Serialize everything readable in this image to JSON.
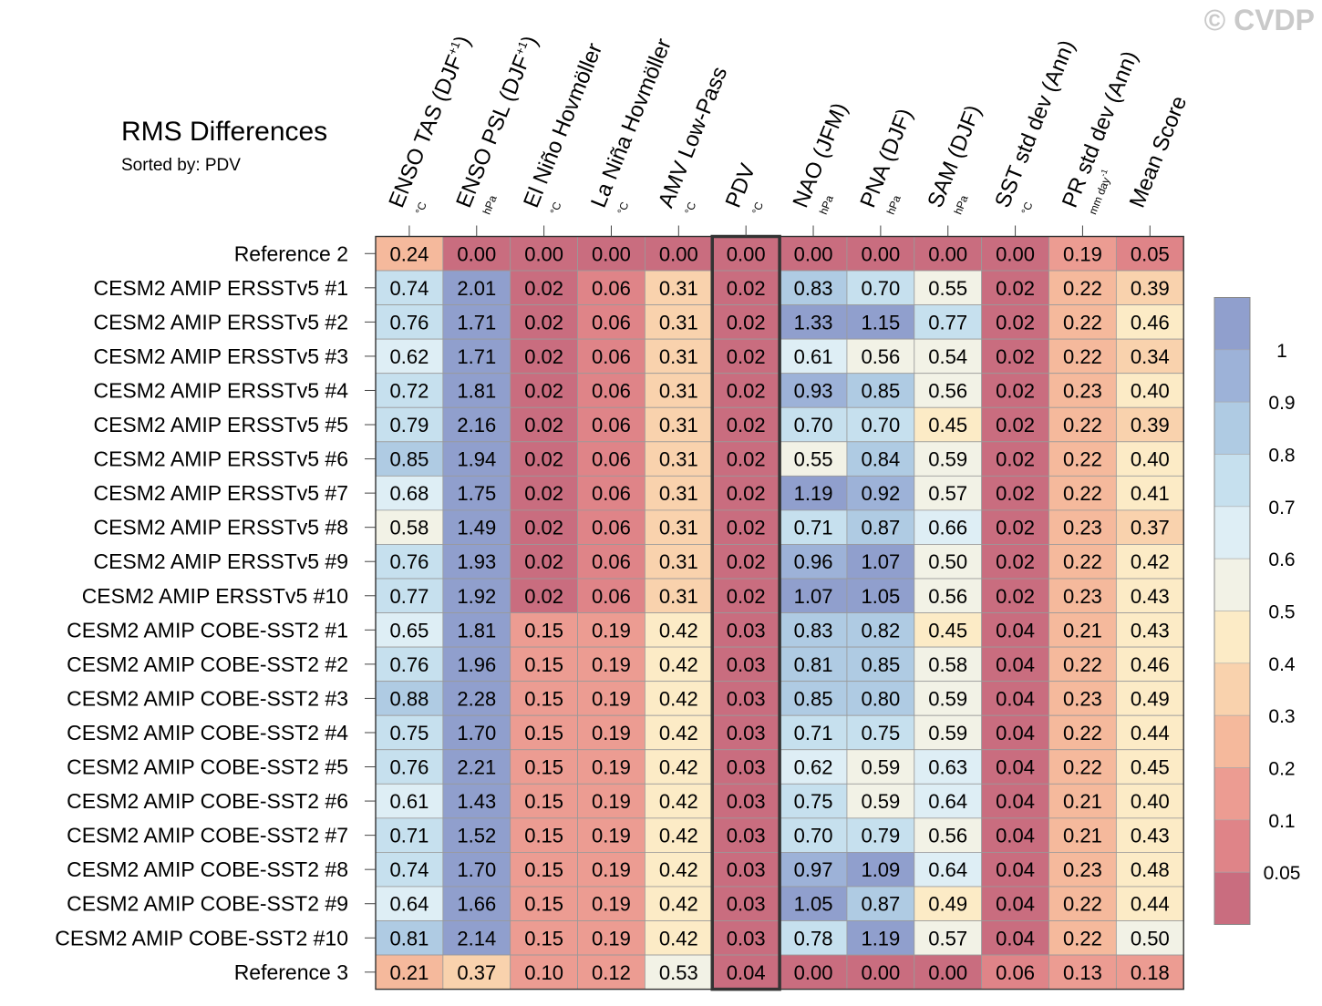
{
  "title": "RMS Differences",
  "subtitle": "Sorted by: PDV",
  "watermark": "© CVDP",
  "chart_data": {
    "type": "heatmap",
    "title": "RMS Differences",
    "sorted_by": "PDV",
    "highlight_column": 5,
    "columns": [
      {
        "label": "ENSO TAS (DJF",
        "sup": "+1",
        "suffix": ")",
        "unit": "°C"
      },
      {
        "label": "ENSO PSL (DJF",
        "sup": "+1",
        "suffix": ")",
        "unit": "hPa"
      },
      {
        "label": "El Niño Hovmöller",
        "sup": "",
        "suffix": "",
        "unit": "°C"
      },
      {
        "label": "La Niña Hovmöller",
        "sup": "",
        "suffix": "",
        "unit": "°C"
      },
      {
        "label": "AMV Low-Pass",
        "sup": "",
        "suffix": "",
        "unit": "°C"
      },
      {
        "label": "PDV",
        "sup": "",
        "suffix": "",
        "unit": "°C"
      },
      {
        "label": "NAO (JFM)",
        "sup": "",
        "suffix": "",
        "unit": "hPa"
      },
      {
        "label": "PNA (DJF)",
        "sup": "",
        "suffix": "",
        "unit": "hPa"
      },
      {
        "label": "SAM (DJF)",
        "sup": "",
        "suffix": "",
        "unit": "hPa"
      },
      {
        "label": "SST std dev (Ann)",
        "sup": "",
        "suffix": "",
        "unit": "°C"
      },
      {
        "label": "PR std dev (Ann)",
        "sup": "",
        "suffix": "",
        "unit": "mm day",
        "unit_sup": "-1"
      },
      {
        "label": "Mean Score",
        "sup": "",
        "suffix": "",
        "unit": ""
      }
    ],
    "rows": [
      {
        "name": "Reference 2",
        "values": [
          "0.24",
          "0.00",
          "0.00",
          "0.00",
          "0.00",
          "0.00",
          "0.00",
          "0.00",
          "0.00",
          "0.00",
          "0.19",
          "0.05"
        ]
      },
      {
        "name": "CESM2 AMIP ERSSTv5 #1",
        "values": [
          "0.74",
          "2.01",
          "0.02",
          "0.06",
          "0.31",
          "0.02",
          "0.83",
          "0.70",
          "0.55",
          "0.02",
          "0.22",
          "0.39"
        ]
      },
      {
        "name": "CESM2 AMIP ERSSTv5 #2",
        "values": [
          "0.76",
          "1.71",
          "0.02",
          "0.06",
          "0.31",
          "0.02",
          "1.33",
          "1.15",
          "0.77",
          "0.02",
          "0.22",
          "0.46"
        ]
      },
      {
        "name": "CESM2 AMIP ERSSTv5 #3",
        "values": [
          "0.62",
          "1.71",
          "0.02",
          "0.06",
          "0.31",
          "0.02",
          "0.61",
          "0.56",
          "0.54",
          "0.02",
          "0.22",
          "0.34"
        ]
      },
      {
        "name": "CESM2 AMIP ERSSTv5 #4",
        "values": [
          "0.72",
          "1.81",
          "0.02",
          "0.06",
          "0.31",
          "0.02",
          "0.93",
          "0.85",
          "0.56",
          "0.02",
          "0.23",
          "0.40"
        ]
      },
      {
        "name": "CESM2 AMIP ERSSTv5 #5",
        "values": [
          "0.79",
          "2.16",
          "0.02",
          "0.06",
          "0.31",
          "0.02",
          "0.70",
          "0.70",
          "0.45",
          "0.02",
          "0.22",
          "0.39"
        ]
      },
      {
        "name": "CESM2 AMIP ERSSTv5 #6",
        "values": [
          "0.85",
          "1.94",
          "0.02",
          "0.06",
          "0.31",
          "0.02",
          "0.55",
          "0.84",
          "0.59",
          "0.02",
          "0.22",
          "0.40"
        ]
      },
      {
        "name": "CESM2 AMIP ERSSTv5 #7",
        "values": [
          "0.68",
          "1.75",
          "0.02",
          "0.06",
          "0.31",
          "0.02",
          "1.19",
          "0.92",
          "0.57",
          "0.02",
          "0.22",
          "0.41"
        ]
      },
      {
        "name": "CESM2 AMIP ERSSTv5 #8",
        "values": [
          "0.58",
          "1.49",
          "0.02",
          "0.06",
          "0.31",
          "0.02",
          "0.71",
          "0.87",
          "0.66",
          "0.02",
          "0.23",
          "0.37"
        ]
      },
      {
        "name": "CESM2 AMIP ERSSTv5 #9",
        "values": [
          "0.76",
          "1.93",
          "0.02",
          "0.06",
          "0.31",
          "0.02",
          "0.96",
          "1.07",
          "0.50",
          "0.02",
          "0.22",
          "0.42"
        ]
      },
      {
        "name": "CESM2 AMIP ERSSTv5 #10",
        "values": [
          "0.77",
          "1.92",
          "0.02",
          "0.06",
          "0.31",
          "0.02",
          "1.07",
          "1.05",
          "0.56",
          "0.02",
          "0.23",
          "0.43"
        ]
      },
      {
        "name": "CESM2 AMIP COBE-SST2 #1",
        "values": [
          "0.65",
          "1.81",
          "0.15",
          "0.19",
          "0.42",
          "0.03",
          "0.83",
          "0.82",
          "0.45",
          "0.04",
          "0.21",
          "0.43"
        ]
      },
      {
        "name": "CESM2 AMIP COBE-SST2 #2",
        "values": [
          "0.76",
          "1.96",
          "0.15",
          "0.19",
          "0.42",
          "0.03",
          "0.81",
          "0.85",
          "0.58",
          "0.04",
          "0.22",
          "0.46"
        ]
      },
      {
        "name": "CESM2 AMIP COBE-SST2 #3",
        "values": [
          "0.88",
          "2.28",
          "0.15",
          "0.19",
          "0.42",
          "0.03",
          "0.85",
          "0.80",
          "0.59",
          "0.04",
          "0.23",
          "0.49"
        ]
      },
      {
        "name": "CESM2 AMIP COBE-SST2 #4",
        "values": [
          "0.75",
          "1.70",
          "0.15",
          "0.19",
          "0.42",
          "0.03",
          "0.71",
          "0.75",
          "0.59",
          "0.04",
          "0.22",
          "0.44"
        ]
      },
      {
        "name": "CESM2 AMIP COBE-SST2 #5",
        "values": [
          "0.76",
          "2.21",
          "0.15",
          "0.19",
          "0.42",
          "0.03",
          "0.62",
          "0.59",
          "0.63",
          "0.04",
          "0.22",
          "0.45"
        ]
      },
      {
        "name": "CESM2 AMIP COBE-SST2 #6",
        "values": [
          "0.61",
          "1.43",
          "0.15",
          "0.19",
          "0.42",
          "0.03",
          "0.75",
          "0.59",
          "0.64",
          "0.04",
          "0.21",
          "0.40"
        ]
      },
      {
        "name": "CESM2 AMIP COBE-SST2 #7",
        "values": [
          "0.71",
          "1.52",
          "0.15",
          "0.19",
          "0.42",
          "0.03",
          "0.70",
          "0.79",
          "0.56",
          "0.04",
          "0.21",
          "0.43"
        ]
      },
      {
        "name": "CESM2 AMIP COBE-SST2 #8",
        "values": [
          "0.74",
          "1.70",
          "0.15",
          "0.19",
          "0.42",
          "0.03",
          "0.97",
          "1.09",
          "0.64",
          "0.04",
          "0.23",
          "0.48"
        ]
      },
      {
        "name": "CESM2 AMIP COBE-SST2 #9",
        "values": [
          "0.64",
          "1.66",
          "0.15",
          "0.19",
          "0.42",
          "0.03",
          "1.05",
          "0.87",
          "0.49",
          "0.04",
          "0.22",
          "0.44"
        ]
      },
      {
        "name": "CESM2 AMIP COBE-SST2 #10",
        "values": [
          "0.81",
          "2.14",
          "0.15",
          "0.19",
          "0.42",
          "0.03",
          "0.78",
          "1.19",
          "0.57",
          "0.04",
          "0.22",
          "0.50"
        ]
      },
      {
        "name": "Reference 3",
        "values": [
          "0.21",
          "0.37",
          "0.10",
          "0.12",
          "0.53",
          "0.04",
          "0.00",
          "0.00",
          "0.00",
          "0.06",
          "0.13",
          "0.18"
        ]
      }
    ],
    "colorbar": {
      "levels": [
        0.05,
        0.1,
        0.2,
        0.3,
        0.4,
        0.5,
        0.6,
        0.7,
        0.8,
        0.9,
        1
      ],
      "labels": [
        "0.05",
        "0.1",
        "0.2",
        "0.3",
        "0.4",
        "0.5",
        "0.6",
        "0.7",
        "0.8",
        "0.9",
        "1"
      ],
      "colors": [
        "#c96d7f",
        "#df8488",
        "#ec9c92",
        "#f5b99c",
        "#f9d2ad",
        "#fcebc6",
        "#f2f2e6",
        "#deeef5",
        "#c6e0ee",
        "#afcbe3",
        "#9db2d8",
        "#909fcd"
      ]
    }
  }
}
